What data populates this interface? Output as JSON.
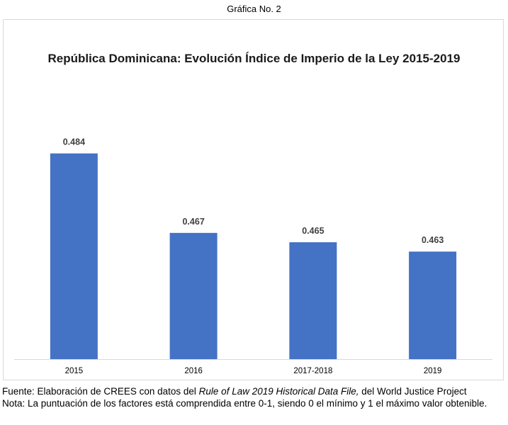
{
  "caption": "Gráfica No. 2",
  "chart_data": {
    "type": "bar",
    "title": "República Dominicana: Evolución Índice de Imperio de la Ley 2015-2019",
    "categories": [
      "2015",
      "2016",
      "2017-2018",
      "2019"
    ],
    "values": [
      0.484,
      0.467,
      0.465,
      0.463
    ],
    "data_labels": [
      "0.484",
      "0.467",
      "0.465",
      "0.463"
    ],
    "xlabel": "",
    "ylabel": "",
    "ylim": [
      0.44,
      0.49
    ],
    "grid": false,
    "legend": "none",
    "bar_color": "#4472c4"
  },
  "footer": {
    "source_prefix": "Fuente: Elaboración de CREES con datos del ",
    "source_title": "Rule of Law 2019 Historical Data File,",
    "source_suffix": " del World Justice Project",
    "note": "Nota: La puntuación de los factores está comprendida entre 0-1, siendo 0 el mínimo y 1 el máximo valor obtenible."
  }
}
